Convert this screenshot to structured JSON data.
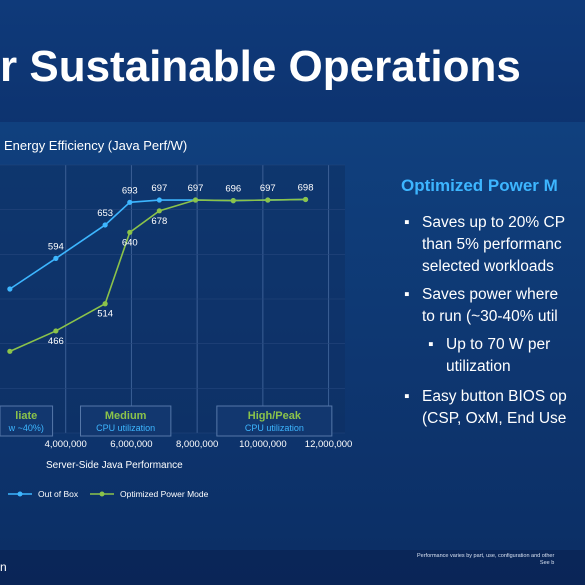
{
  "slide": {
    "title": "r Sustainable Operations",
    "footer_left": "n",
    "footer_note_1": "Performance varies by part, use, configuration and other",
    "footer_note_2": "See b"
  },
  "colors": {
    "out_of_box": "#3db6ff",
    "optimized": "#8bc34a",
    "accent": "#3db6ff"
  },
  "side": {
    "title": "Optimized Power M",
    "b1": [
      "Saves up to 20% CP",
      "than 5% performanc",
      "selected workloads"
    ],
    "b2": [
      "Saves power where",
      "to run (~30-40% util"
    ],
    "b2_sub": [
      "Up to 70 W per",
      "utilization"
    ],
    "b3": [
      "Easy button BIOS op",
      "(CSP, OxM, End Use"
    ]
  },
  "chart_data": {
    "type": "line",
    "title": "Energy Efficiency (Java Perf/W)",
    "xlabel": "Server-Side Java Performance",
    "ylabel": "",
    "x_ticks": [
      "4,000,000",
      "6,000,000",
      "8,000,000",
      "10,000,000",
      "12,000,000"
    ],
    "x_tick_values": [
      4000000,
      6000000,
      8000000,
      10000000,
      12000000
    ],
    "xlim": [
      2000000,
      12500000
    ],
    "ylim": [
      300,
      720
    ],
    "grid": true,
    "legend": "bottom-left",
    "series": [
      {
        "name": "Out of Box",
        "color": "#3db6ff",
        "x": [
          2300000,
          3700000,
          5200000,
          5950000,
          6850000,
          7950000,
          9100000,
          10150000,
          11300000
        ],
        "y": [
          540,
          594,
          653,
          693,
          697,
          697,
          696,
          697,
          698
        ],
        "labels": [
          "",
          "594",
          "653",
          "693",
          "697",
          "697",
          "696",
          "697",
          "698"
        ]
      },
      {
        "name": "Optimized Power Mode",
        "color": "#8bc34a",
        "x": [
          2300000,
          3700000,
          5200000,
          5950000,
          6850000,
          7950000,
          9100000,
          10150000,
          11300000
        ],
        "y": [
          430,
          466,
          514,
          640,
          678,
          697,
          696,
          697,
          698
        ],
        "labels": [
          "",
          "466",
          "514",
          "640",
          "678",
          "",
          "",
          "",
          ""
        ]
      }
    ],
    "regions": [
      {
        "title": "liate",
        "sub": "w ~40%)",
        "x0": 2000000,
        "x1": 3600000
      },
      {
        "title": "Medium",
        "sub": "CPU utilization",
        "x0": 4450000,
        "x1": 7200000
      },
      {
        "title": "High/Peak",
        "sub": "CPU utilization",
        "x0": 8600000,
        "x1": 12100000
      }
    ]
  }
}
